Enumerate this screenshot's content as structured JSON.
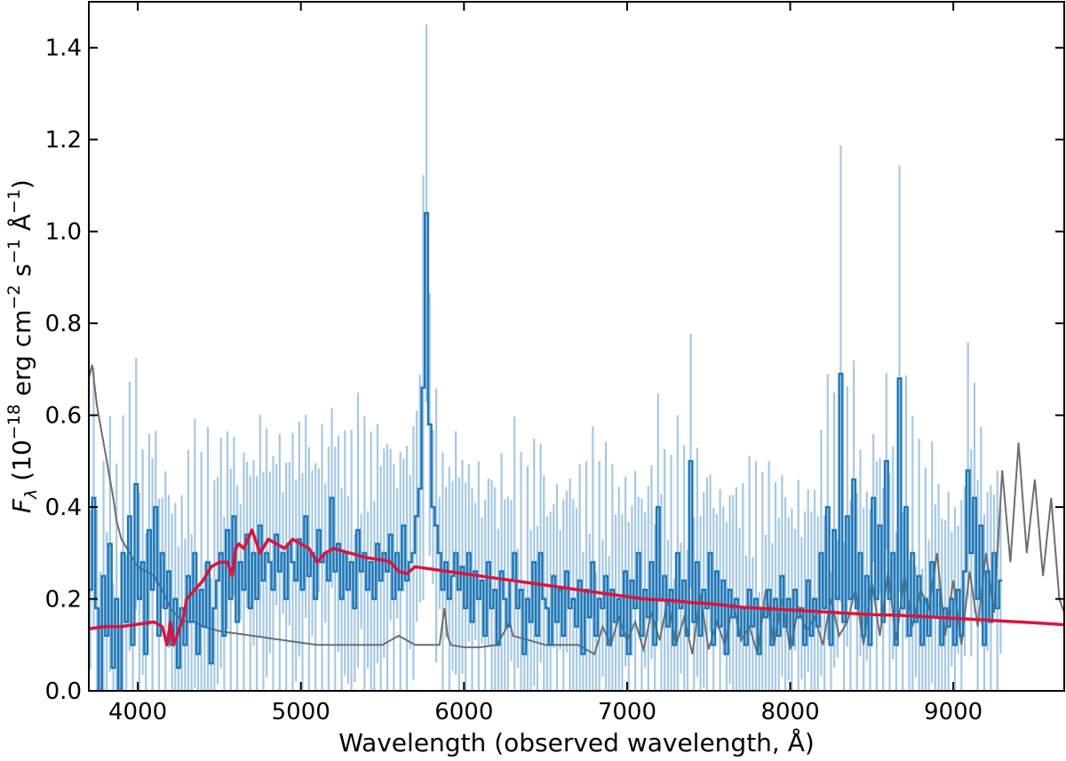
{
  "chart_data": {
    "type": "line",
    "xlabel": "Wavelength (observed wavelength, Å)",
    "ylabel_parts": {
      "symbol": "F",
      "symbol_sub": "λ",
      "open": " (10",
      "exp1": "−18",
      "erg": " erg cm",
      "exp2": "−2",
      "s": " s",
      "exp3": "−1",
      "angstrom": " Å",
      "exp4": "−1",
      "close": ")"
    },
    "xlim": [
      3700,
      9680
    ],
    "ylim": [
      0.0,
      1.5
    ],
    "x_ticks": [
      4000,
      5000,
      6000,
      7000,
      8000,
      9000
    ],
    "x_tick_labels": [
      "4000",
      "5000",
      "6000",
      "7000",
      "8000",
      "9000"
    ],
    "y_ticks": [
      0.0,
      0.2,
      0.4,
      0.6,
      0.8,
      1.0,
      1.2,
      1.4
    ],
    "y_tick_labels": [
      "0.0",
      "0.2",
      "0.4",
      "0.6",
      "0.8",
      "1.0",
      "1.2",
      "1.4"
    ],
    "grid": false,
    "legend": "none",
    "series": [
      {
        "id": "noise",
        "style": "line",
        "color": "#6e6e6e",
        "x": [
          3700,
          3720,
          3750,
          3770,
          3800,
          3820,
          3850,
          3870,
          3900,
          3950,
          4000,
          4050,
          4100,
          4150,
          4200,
          4250,
          4300,
          4350,
          4400,
          4500,
          4600,
          4700,
          4800,
          4900,
          5000,
          5100,
          5200,
          5300,
          5400,
          5500,
          5600,
          5700,
          5800,
          5850,
          5880,
          5900,
          5920,
          6000,
          6100,
          6200,
          6250,
          6280,
          6300,
          6400,
          6500,
          6600,
          6700,
          6800,
          6850,
          6900,
          6950,
          7000,
          7050,
          7100,
          7150,
          7200,
          7250,
          7300,
          7350,
          7400,
          7450,
          7500,
          7550,
          7600,
          7650,
          7700,
          7750,
          7800,
          7850,
          7900,
          7950,
          8000,
          8050,
          8100,
          8150,
          8200,
          8250,
          8300,
          8350,
          8400,
          8450,
          8500,
          8550,
          8600,
          8650,
          8700,
          8750,
          8800,
          8850,
          8900,
          8950,
          9000,
          9050,
          9100,
          9150,
          9200,
          9250,
          9300,
          9350,
          9400,
          9450,
          9500,
          9550,
          9600,
          9650,
          9680
        ],
        "y": [
          0.68,
          0.71,
          0.62,
          0.58,
          0.52,
          0.48,
          0.42,
          0.37,
          0.33,
          0.3,
          0.27,
          0.26,
          0.25,
          0.22,
          0.18,
          0.16,
          0.15,
          0.15,
          0.14,
          0.13,
          0.125,
          0.12,
          0.115,
          0.11,
          0.105,
          0.1,
          0.1,
          0.1,
          0.1,
          0.1,
          0.12,
          0.1,
          0.1,
          0.1,
          0.18,
          0.12,
          0.1,
          0.095,
          0.095,
          0.1,
          0.13,
          0.15,
          0.12,
          0.11,
          0.1,
          0.1,
          0.1,
          0.08,
          0.14,
          0.1,
          0.16,
          0.11,
          0.15,
          0.09,
          0.17,
          0.11,
          0.2,
          0.1,
          0.16,
          0.08,
          0.21,
          0.09,
          0.15,
          0.1,
          0.19,
          0.11,
          0.14,
          0.08,
          0.22,
          0.1,
          0.2,
          0.09,
          0.18,
          0.13,
          0.16,
          0.1,
          0.2,
          0.12,
          0.15,
          0.22,
          0.1,
          0.24,
          0.12,
          0.26,
          0.11,
          0.25,
          0.14,
          0.22,
          0.18,
          0.3,
          0.12,
          0.24,
          0.1,
          0.26,
          0.14,
          0.3,
          0.17,
          0.48,
          0.28,
          0.54,
          0.3,
          0.46,
          0.25,
          0.42,
          0.2,
          0.17
        ]
      },
      {
        "id": "model",
        "style": "line",
        "color": "#dc143c",
        "x": [
          3700,
          3800,
          3900,
          4000,
          4100,
          4150,
          4180,
          4200,
          4220,
          4250,
          4280,
          4300,
          4350,
          4400,
          4450,
          4500,
          4550,
          4580,
          4600,
          4620,
          4650,
          4700,
          4720,
          4750,
          4800,
          4850,
          4900,
          4950,
          5000,
          5050,
          5100,
          5150,
          5200,
          5300,
          5400,
          5500,
          5550,
          5600,
          5650,
          5700,
          5800,
          5900,
          6000,
          6100,
          6200,
          6300,
          6400,
          6500,
          6600,
          6700,
          6800,
          6900,
          7000,
          7100,
          7200,
          7300,
          7400,
          7500,
          7600,
          7700,
          7800,
          7900,
          8000,
          8100,
          8200,
          8300,
          8400,
          8500,
          8600,
          8700,
          8800,
          8900,
          9000,
          9100,
          9200,
          9300,
          9400,
          9500,
          9600,
          9680
        ],
        "y": [
          0.135,
          0.14,
          0.14,
          0.145,
          0.15,
          0.14,
          0.1,
          0.15,
          0.1,
          0.13,
          0.16,
          0.2,
          0.22,
          0.24,
          0.27,
          0.28,
          0.28,
          0.25,
          0.31,
          0.32,
          0.31,
          0.35,
          0.33,
          0.3,
          0.33,
          0.32,
          0.31,
          0.33,
          0.32,
          0.31,
          0.28,
          0.3,
          0.31,
          0.3,
          0.29,
          0.285,
          0.28,
          0.26,
          0.255,
          0.27,
          0.265,
          0.26,
          0.255,
          0.25,
          0.245,
          0.24,
          0.235,
          0.23,
          0.225,
          0.22,
          0.215,
          0.21,
          0.205,
          0.2,
          0.198,
          0.196,
          0.192,
          0.19,
          0.186,
          0.182,
          0.18,
          0.178,
          0.176,
          0.174,
          0.172,
          0.17,
          0.168,
          0.166,
          0.165,
          0.164,
          0.162,
          0.16,
          0.158,
          0.156,
          0.154,
          0.152,
          0.15,
          0.148,
          0.146,
          0.144
        ]
      }
    ],
    "spectrum": {
      "id": "observed-spectrum",
      "style": "step",
      "color": "#1f77b4",
      "errorbar_color": "#a6c8e4",
      "note": "binned flux with per-bin error bars; values estimated",
      "x_start": 3700,
      "bin_width": 20,
      "y": [
        0.22,
        0.42,
        0.18,
        0.0,
        0.25,
        0.12,
        0.32,
        0.05,
        0.2,
        0.0,
        0.3,
        0.15,
        0.38,
        0.1,
        0.45,
        0.2,
        0.28,
        0.08,
        0.35,
        0.22,
        0.4,
        0.12,
        0.3,
        0.18,
        0.26,
        0.1,
        0.2,
        0.05,
        0.18,
        0.1,
        0.25,
        0.15,
        0.3,
        0.08,
        0.22,
        0.14,
        0.28,
        0.06,
        0.18,
        0.24,
        0.3,
        0.12,
        0.35,
        0.2,
        0.38,
        0.15,
        0.28,
        0.22,
        0.34,
        0.18,
        0.3,
        0.2,
        0.36,
        0.24,
        0.3,
        0.28,
        0.22,
        0.34,
        0.26,
        0.3,
        0.2,
        0.32,
        0.28,
        0.24,
        0.33,
        0.22,
        0.38,
        0.25,
        0.3,
        0.2,
        0.35,
        0.28,
        0.3,
        0.24,
        0.42,
        0.26,
        0.32,
        0.2,
        0.3,
        0.22,
        0.28,
        0.18,
        0.35,
        0.26,
        0.3,
        0.22,
        0.28,
        0.2,
        0.32,
        0.24,
        0.3,
        0.26,
        0.34,
        0.2,
        0.3,
        0.22,
        0.36,
        0.24,
        0.28,
        0.3,
        0.38,
        0.44,
        0.66,
        1.04,
        0.58,
        0.4,
        0.36,
        0.3,
        0.22,
        0.28,
        0.2,
        0.25,
        0.3,
        0.22,
        0.27,
        0.18,
        0.3,
        0.15,
        0.26,
        0.2,
        0.24,
        0.12,
        0.28,
        0.18,
        0.22,
        0.1,
        0.26,
        0.2,
        0.14,
        0.24,
        0.3,
        0.18,
        0.22,
        0.08,
        0.2,
        0.15,
        0.28,
        0.12,
        0.3,
        0.2,
        0.18,
        0.1,
        0.25,
        0.15,
        0.22,
        0.12,
        0.26,
        0.18,
        0.2,
        0.14,
        0.24,
        0.08,
        0.22,
        0.16,
        0.28,
        0.12,
        0.2,
        0.18,
        0.25,
        0.1,
        0.22,
        0.15,
        0.2,
        0.12,
        0.26,
        0.08,
        0.24,
        0.18,
        0.3,
        0.12,
        0.22,
        0.16,
        0.28,
        0.1,
        0.4,
        0.2,
        0.25,
        0.14,
        0.22,
        0.1,
        0.3,
        0.18,
        0.24,
        0.12,
        0.5,
        0.15,
        0.28,
        0.12,
        0.22,
        0.18,
        0.3,
        0.1,
        0.26,
        0.14,
        0.24,
        0.08,
        0.22,
        0.16,
        0.2,
        0.12,
        0.18,
        0.1,
        0.22,
        0.14,
        0.2,
        0.08,
        0.18,
        0.16,
        0.22,
        0.1,
        0.2,
        0.12,
        0.25,
        0.14,
        0.2,
        0.1,
        0.22,
        0.16,
        0.18,
        0.1,
        0.24,
        0.12,
        0.2,
        0.14,
        0.3,
        0.18,
        0.4,
        0.1,
        0.35,
        0.2,
        0.69,
        0.15,
        0.38,
        0.2,
        0.46,
        0.18,
        0.3,
        0.12,
        0.25,
        0.1,
        0.42,
        0.2,
        0.36,
        0.15,
        0.5,
        0.2,
        0.3,
        0.1,
        0.68,
        0.18,
        0.4,
        0.12,
        0.3,
        0.15,
        0.25,
        0.1,
        0.2,
        0.12,
        0.28,
        0.16,
        0.22,
        0.1,
        0.18,
        0.14,
        0.2,
        0.1,
        0.22,
        0.12,
        0.26,
        0.48,
        0.3,
        0.42,
        0.2,
        0.36,
        0.1,
        0.26,
        0.15,
        0.3,
        0.18,
        0.24
      ]
    }
  }
}
